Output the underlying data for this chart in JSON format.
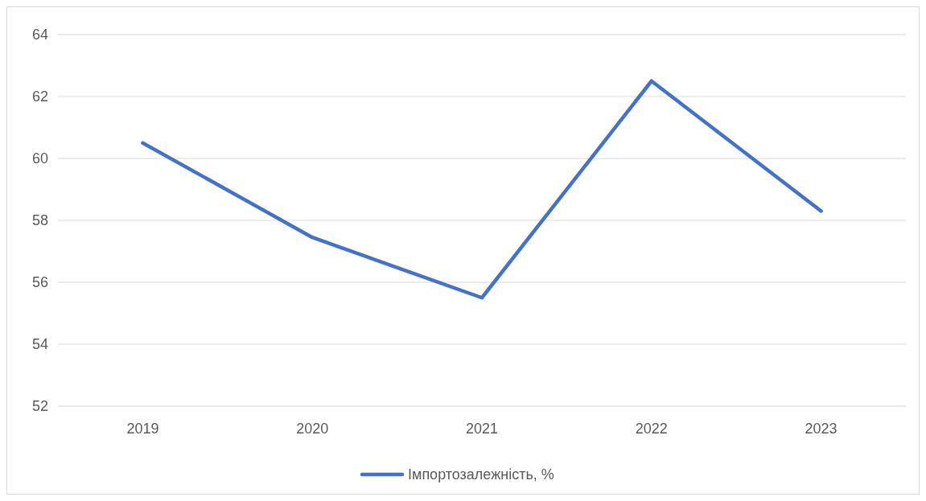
{
  "chart_data": {
    "type": "line",
    "categories": [
      "2019",
      "2020",
      "2021",
      "2022",
      "2023"
    ],
    "series": [
      {
        "name": "Імпортозалежність, %",
        "color": "#4472c4",
        "values": [
          60.5,
          57.45,
          55.5,
          62.5,
          58.3
        ]
      }
    ],
    "ylim": [
      52,
      64
    ],
    "yticks": [
      52,
      54,
      56,
      58,
      60,
      62,
      64
    ],
    "grid": "y",
    "legend": "bottom",
    "marker": "none",
    "line_style": "solid"
  }
}
